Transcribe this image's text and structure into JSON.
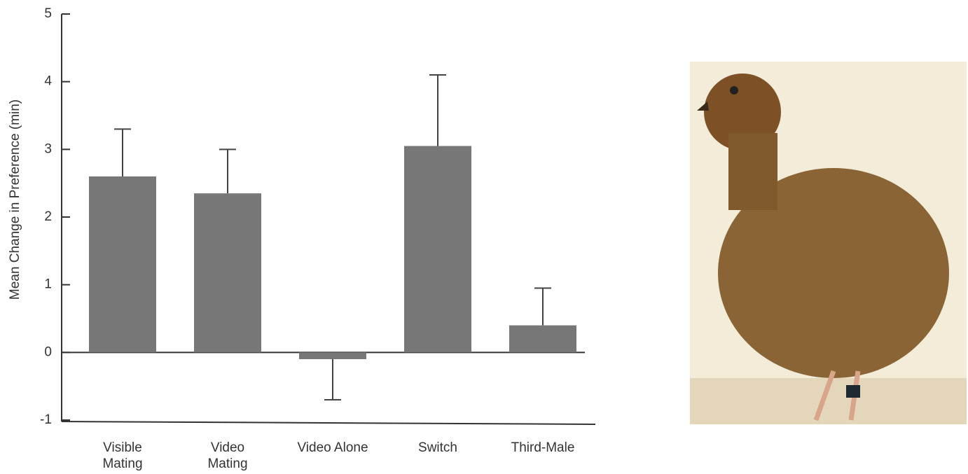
{
  "chart_data": {
    "type": "bar",
    "y_label": "Mean Change in Preference (min)",
    "categories": [
      "Visible Mating",
      "Video Mating",
      "Video Alone",
      "Switch",
      "Third-Male"
    ],
    "values": [
      2.6,
      2.35,
      -0.1,
      3.05,
      0.4
    ],
    "error": [
      0.7,
      0.65,
      0.6,
      1.05,
      0.55
    ],
    "color": "#777777",
    "ylim": [
      -1,
      5
    ],
    "yticks": [
      -1,
      0,
      1,
      2,
      3,
      4,
      5
    ],
    "grid": false
  }
}
